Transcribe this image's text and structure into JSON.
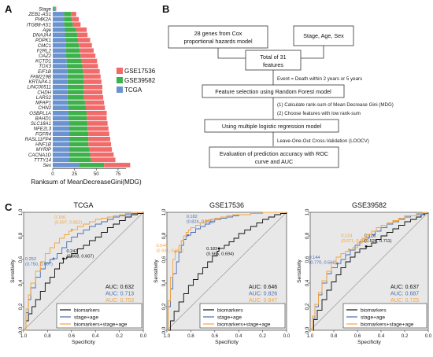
{
  "colors": {
    "GSE17536": "#f26b6b",
    "GSE39582": "#3db24a",
    "TCGA": "#6a93d0",
    "biomarkers": "#111111",
    "stage_age": "#4a6fb5",
    "combined": "#f5a33a",
    "roc_bg": "#e8e8e8"
  },
  "panels": {
    "A": "A",
    "B": "B",
    "C": "C"
  },
  "chart_data": [
    {
      "type": "bar",
      "orientation": "horizontal",
      "stacked": true,
      "xlabel": "Ranksum of MeanDecreaseGini(MDG)",
      "xticks": [
        0,
        25,
        50,
        75
      ],
      "xlim": [
        0,
        95
      ],
      "categories": [
        "Stage",
        "ZEB1-AS1",
        "PI4K2A",
        "ITGB8-AS1",
        "Age",
        "DNAJA4",
        "PDPK1",
        "CMC1",
        "F2RL2",
        "OAZ2",
        "KCTD1",
        "TOX3",
        "EIF1B",
        "FAM219B",
        "KRTAP4-1",
        "LINC00511",
        "CHDH",
        "LARS2",
        "MFAP1",
        "CHN2",
        "OSBPL1A",
        "BAHD1",
        "SLC18A1",
        "NFE2L3",
        "FGFR4",
        "RASL11FP4",
        "HNF1B",
        "MYRIP",
        "CACNA1D",
        "TTTY14",
        "Sex"
      ],
      "series": [
        {
          "name": "GSE17536",
          "values": [
            1,
            6,
            8,
            9,
            12,
            12,
            14,
            15,
            16,
            17,
            18,
            18,
            19,
            19,
            20,
            21,
            21,
            22,
            22,
            22,
            23,
            23,
            23,
            24,
            24,
            25,
            26,
            26,
            27,
            28,
            30
          ]
        },
        {
          "name": "GSE39582",
          "values": [
            1,
            8,
            9,
            10,
            13,
            14,
            14,
            15,
            16,
            17,
            17,
            18,
            18,
            19,
            19,
            19,
            19,
            19,
            20,
            20,
            21,
            21,
            21,
            21,
            22,
            22,
            22,
            23,
            24,
            25,
            29
          ]
        },
        {
          "name": "TCGA",
          "values": [
            2,
            13,
            13,
            13,
            14,
            14,
            15,
            15,
            15,
            15,
            16,
            16,
            17,
            17,
            17,
            17,
            17,
            17,
            17,
            18,
            18,
            18,
            19,
            19,
            19,
            19,
            19,
            19,
            19,
            19,
            30
          ]
        }
      ]
    },
    {
      "type": "line",
      "title": "TCGA",
      "xlabel": "Specificity",
      "ylabel": "Sensitivity",
      "xticks": [
        "1.0",
        "0.8",
        "0.6",
        "0.4",
        "0.2",
        "0.0"
      ],
      "yticks": [
        "0.0",
        "0.2",
        "0.4",
        "0.6",
        "0.8",
        "1.0"
      ],
      "series": [
        {
          "name": "biomarkers",
          "auc": "0.632",
          "thr": "0.242",
          "ci": "(0.668, 0.607)",
          "x": [
            1.0,
            0.98,
            0.96,
            0.93,
            0.9,
            0.86,
            0.82,
            0.78,
            0.74,
            0.7,
            0.668,
            0.64,
            0.6,
            0.55,
            0.5,
            0.45,
            0.4,
            0.35,
            0.3,
            0.25,
            0.2,
            0.15,
            0.1,
            0.05,
            0.0
          ],
          "y": [
            0.0,
            0.08,
            0.14,
            0.2,
            0.26,
            0.33,
            0.4,
            0.45,
            0.52,
            0.57,
            0.607,
            0.62,
            0.65,
            0.69,
            0.72,
            0.76,
            0.79,
            0.83,
            0.87,
            0.9,
            0.93,
            0.96,
            0.98,
            0.99,
            1.0
          ]
        },
        {
          "name": "stage+age",
          "auc": "0.713",
          "thr": "0.252",
          "ci": "(0.750, 0.607)",
          "x": [
            1.0,
            0.98,
            0.96,
            0.94,
            0.9,
            0.86,
            0.82,
            0.78,
            0.75,
            0.72,
            0.68,
            0.64,
            0.6,
            0.55,
            0.5,
            0.45,
            0.4,
            0.35,
            0.3,
            0.25,
            0.2,
            0.15,
            0.1,
            0.05,
            0.0
          ],
          "y": [
            0.0,
            0.15,
            0.26,
            0.36,
            0.45,
            0.52,
            0.57,
            0.6,
            0.607,
            0.65,
            0.7,
            0.75,
            0.79,
            0.82,
            0.85,
            0.88,
            0.9,
            0.92,
            0.94,
            0.96,
            0.97,
            0.98,
            0.99,
            1.0,
            1.0
          ]
        },
        {
          "name": "biomarkers+stage+age",
          "auc": "0.753",
          "thr": "0.156",
          "ci": "(0.597, 0.852)",
          "x": [
            1.0,
            0.98,
            0.96,
            0.94,
            0.9,
            0.86,
            0.82,
            0.78,
            0.74,
            0.7,
            0.66,
            0.62,
            0.597,
            0.55,
            0.5,
            0.45,
            0.4,
            0.35,
            0.3,
            0.25,
            0.2,
            0.15,
            0.1,
            0.05,
            0.0
          ],
          "y": [
            0.0,
            0.18,
            0.3,
            0.4,
            0.5,
            0.58,
            0.65,
            0.7,
            0.74,
            0.78,
            0.81,
            0.84,
            0.852,
            0.88,
            0.9,
            0.92,
            0.94,
            0.95,
            0.96,
            0.97,
            0.98,
            0.99,
            1.0,
            1.0,
            1.0
          ]
        }
      ]
    },
    {
      "type": "line",
      "title": "GSE17536",
      "xlabel": "Specificity",
      "ylabel": "Sensitivity",
      "xticks": [
        "1.0",
        "0.8",
        "0.6",
        "0.4",
        "0.2",
        "0.0"
      ],
      "yticks": [
        "0.0",
        "0.2",
        "0.4",
        "0.6",
        "0.8",
        "1.0"
      ],
      "series": [
        {
          "name": "biomarkers",
          "auc": "0.646",
          "thr": "0.183",
          "ci": "(0.565, 0.694)",
          "x": [
            1.0,
            0.97,
            0.94,
            0.9,
            0.86,
            0.82,
            0.78,
            0.74,
            0.7,
            0.66,
            0.62,
            0.58,
            0.565,
            0.52,
            0.48,
            0.44,
            0.4,
            0.35,
            0.3,
            0.25,
            0.2,
            0.15,
            0.1,
            0.05,
            0.0
          ],
          "y": [
            0.0,
            0.08,
            0.16,
            0.24,
            0.31,
            0.38,
            0.43,
            0.48,
            0.53,
            0.58,
            0.63,
            0.67,
            0.694,
            0.72,
            0.75,
            0.78,
            0.82,
            0.85,
            0.88,
            0.91,
            0.94,
            0.96,
            0.98,
            0.99,
            1.0
          ]
        },
        {
          "name": "stage+age",
          "auc": "0.826",
          "thr": "0.182",
          "ci": "(0.824, 0.806)",
          "x": [
            1.0,
            0.99,
            0.97,
            0.95,
            0.92,
            0.9,
            0.88,
            0.86,
            0.84,
            0.824,
            0.8,
            0.76,
            0.72,
            0.68,
            0.64,
            0.6,
            0.55,
            0.5,
            0.45,
            0.4,
            0.3,
            0.2,
            0.1,
            0.05,
            0.0
          ],
          "y": [
            0.0,
            0.2,
            0.35,
            0.48,
            0.58,
            0.66,
            0.72,
            0.77,
            0.8,
            0.806,
            0.83,
            0.86,
            0.88,
            0.9,
            0.92,
            0.94,
            0.95,
            0.96,
            0.97,
            0.98,
            0.99,
            1.0,
            1.0,
            1.0,
            1.0
          ]
        },
        {
          "name": "biomarkers+stage+age",
          "auc": "0.847",
          "thr": "0.544",
          "ci": "(0.931, 0.667)",
          "x": [
            1.0,
            0.99,
            0.97,
            0.95,
            0.931,
            0.9,
            0.88,
            0.86,
            0.84,
            0.82,
            0.8,
            0.76,
            0.72,
            0.68,
            0.64,
            0.6,
            0.55,
            0.5,
            0.45,
            0.4,
            0.3,
            0.2,
            0.1,
            0.05,
            0.0
          ],
          "y": [
            0.0,
            0.25,
            0.45,
            0.6,
            0.667,
            0.72,
            0.76,
            0.8,
            0.83,
            0.85,
            0.87,
            0.89,
            0.91,
            0.93,
            0.94,
            0.95,
            0.96,
            0.97,
            0.98,
            0.98,
            0.99,
            1.0,
            1.0,
            1.0,
            1.0
          ]
        }
      ]
    },
    {
      "type": "line",
      "title": "GSE39582",
      "xlabel": "Specificity",
      "ylabel": "Sensitivity",
      "xticks": [
        "1.0",
        "0.8",
        "0.6",
        "0.4",
        "0.2",
        "0.0"
      ],
      "yticks": [
        "0.0",
        "0.2",
        "0.4",
        "0.6",
        "0.8",
        "1.0"
      ],
      "series": [
        {
          "name": "biomarkers",
          "auc": "0.637",
          "thr": "0.126",
          "ci": "(0.526, 0.711)",
          "x": [
            1.0,
            0.97,
            0.94,
            0.9,
            0.86,
            0.82,
            0.78,
            0.74,
            0.7,
            0.66,
            0.62,
            0.58,
            0.526,
            0.48,
            0.44,
            0.4,
            0.35,
            0.3,
            0.25,
            0.2,
            0.15,
            0.1,
            0.06,
            0.03,
            0.0
          ],
          "y": [
            0.0,
            0.09,
            0.17,
            0.26,
            0.34,
            0.41,
            0.47,
            0.53,
            0.58,
            0.62,
            0.66,
            0.69,
            0.711,
            0.74,
            0.77,
            0.8,
            0.83,
            0.86,
            0.89,
            0.92,
            0.94,
            0.96,
            0.98,
            0.99,
            1.0
          ]
        },
        {
          "name": "stage+age",
          "auc": "0.687",
          "thr": "0.144",
          "ci": "(0.770, 0.566)",
          "x": [
            1.0,
            0.98,
            0.96,
            0.93,
            0.9,
            0.86,
            0.82,
            0.77,
            0.74,
            0.7,
            0.66,
            0.62,
            0.58,
            0.54,
            0.5,
            0.45,
            0.4,
            0.35,
            0.3,
            0.25,
            0.2,
            0.15,
            0.1,
            0.05,
            0.0
          ],
          "y": [
            0.0,
            0.1,
            0.2,
            0.3,
            0.4,
            0.48,
            0.53,
            0.566,
            0.6,
            0.64,
            0.68,
            0.72,
            0.75,
            0.78,
            0.81,
            0.84,
            0.87,
            0.9,
            0.92,
            0.94,
            0.96,
            0.97,
            0.98,
            0.99,
            1.0
          ]
        },
        {
          "name": "biomarkers+stage+age",
          "auc": "0.725",
          "thr": "0.124",
          "ci": "(0.671, 0.684)",
          "x": [
            1.0,
            0.98,
            0.96,
            0.93,
            0.9,
            0.86,
            0.82,
            0.78,
            0.74,
            0.7,
            0.671,
            0.64,
            0.6,
            0.56,
            0.52,
            0.48,
            0.44,
            0.4,
            0.35,
            0.3,
            0.25,
            0.2,
            0.1,
            0.05,
            0.0
          ],
          "y": [
            0.0,
            0.12,
            0.22,
            0.32,
            0.42,
            0.5,
            0.57,
            0.62,
            0.65,
            0.67,
            0.684,
            0.7,
            0.74,
            0.78,
            0.81,
            0.84,
            0.87,
            0.89,
            0.91,
            0.93,
            0.95,
            0.97,
            0.99,
            1.0,
            1.0
          ]
        }
      ]
    }
  ],
  "flow": {
    "box1": [
      "28 genes from Cox",
      "proportional hazards model"
    ],
    "box2": "Stage, Age, Sex",
    "box3": [
      "Total of 31",
      "features"
    ],
    "event": "Event = Death within 2 years or 5 years",
    "box4": "Feature selection using Random Forest model",
    "step1": "(1) Calculate rank-sum of Mean Decrease Gini (MDG)",
    "step2": "(2) Choose features with low rank-sum",
    "box5": "Using multiple logistic regression model",
    "loocv": "Leave-One-Out Cross-Validation (LOOCV)",
    "box6": [
      "Evaluation of prediction accuracy with ROC",
      "curve and AUC"
    ]
  },
  "roc_legend": {
    "biomarkers": "biomarkers",
    "stage_age": "stage+age",
    "combined": "biomarkers+stage+age",
    "auc_prefix": "AUC: "
  }
}
